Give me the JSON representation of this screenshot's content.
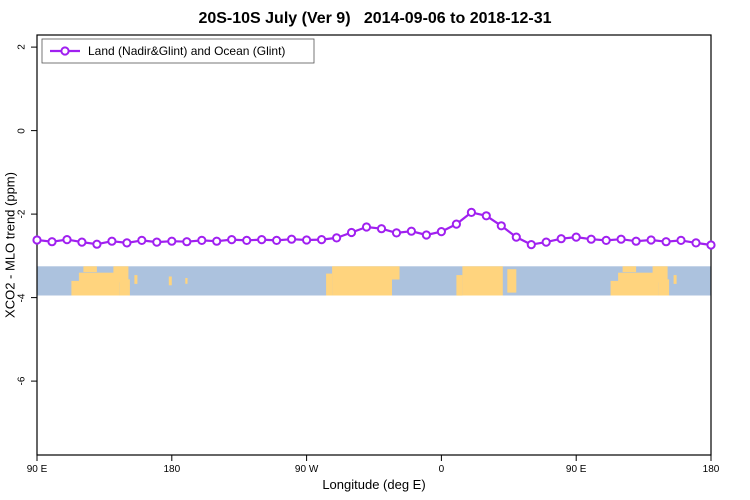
{
  "chart_data": {
    "type": "line",
    "title": "20S-10S July (Ver 9)   2014-09-06 to 2018-12-31",
    "xlabel": "Longitude (deg E)",
    "ylabel": "XCO2 - MLO trend (ppm)",
    "legend": {
      "label": "Land (Nadir&Glint) and Ocean (Glint)",
      "position": "top-left",
      "boxed": true
    },
    "colors": {
      "line": "#A020F0",
      "marker_fill": "#FFFFFF",
      "ocean": "#ACC2DE",
      "land": "#FFD47E",
      "axis": "#000000"
    },
    "grid": false,
    "ylim": [
      -7.77,
      2.29
    ],
    "x_wrap_note": "x axis spans 450 deg eastward from 90E, wrapping through 180, 90W, 0, 90E to 180",
    "x_ticks": [
      {
        "lon": 90,
        "label": "90 E"
      },
      {
        "lon": 180,
        "label": "180"
      },
      {
        "lon": 270,
        "label": "90 W"
      },
      {
        "lon": 360,
        "label": "0"
      },
      {
        "lon": 450,
        "label": "90 E"
      },
      {
        "lon": 540,
        "label": "180"
      }
    ],
    "y_ticks": [
      {
        "value": 2,
        "label": "2"
      },
      {
        "value": 0,
        "label": "0"
      },
      {
        "value": -2,
        "label": "-2"
      },
      {
        "value": -4,
        "label": "-4"
      },
      {
        "value": -6,
        "label": "-6"
      }
    ],
    "series": [
      {
        "name": "Land (Nadir&Glint) and Ocean (Glint)",
        "x": [
          90,
          100,
          110,
          120,
          130,
          140,
          150,
          160,
          170,
          180,
          190,
          200,
          210,
          220,
          230,
          240,
          250,
          260,
          270,
          280,
          290,
          300,
          310,
          320,
          330,
          340,
          350,
          360,
          370,
          380,
          390,
          400,
          410,
          420,
          430,
          440,
          450,
          460,
          470,
          480,
          490,
          500,
          510,
          520,
          530,
          540
        ],
        "y": [
          -2.62,
          -2.66,
          -2.61,
          -2.67,
          -2.72,
          -2.65,
          -2.69,
          -2.63,
          -2.67,
          -2.65,
          -2.66,
          -2.63,
          -2.65,
          -2.61,
          -2.63,
          -2.61,
          -2.63,
          -2.6,
          -2.62,
          -2.61,
          -2.57,
          -2.44,
          -2.31,
          -2.35,
          -2.45,
          -2.41,
          -2.5,
          -2.42,
          -2.24,
          -1.96,
          -2.04,
          -2.28,
          -2.55,
          -2.73,
          -2.67,
          -2.59,
          -2.55,
          -2.6,
          -2.63,
          -2.6,
          -2.65,
          -2.62,
          -2.66,
          -2.63,
          -2.69,
          -2.74
        ]
      }
    ],
    "map_band": {
      "description": "20S-10S land/ocean strip",
      "y_top": -3.25,
      "y_bottom": -3.95,
      "ocean_color": "#ACC2DE",
      "land_color": "#FFD47E",
      "land_patches": [
        {
          "lon0": 113,
          "lon1": 119,
          "top": 0.5,
          "bot": 1
        },
        {
          "lon0": 118,
          "lon1": 145,
          "top": 0.22,
          "bot": 1
        },
        {
          "lon0": 121,
          "lon1": 130,
          "top": 0,
          "bot": 0.2
        },
        {
          "lon0": 141,
          "lon1": 151,
          "top": 0,
          "bot": 0.55
        },
        {
          "lon0": 145,
          "lon1": 152,
          "top": 0.45,
          "bot": 1
        },
        {
          "lon0": 155,
          "lon1": 157,
          "top": 0.3,
          "bot": 0.6
        },
        {
          "lon0": 178,
          "lon1": 180,
          "top": 0.35,
          "bot": 0.65
        },
        {
          "lon0": 189,
          "lon1": 190.5,
          "top": 0.4,
          "bot": 0.6
        },
        {
          "lon0": 283,
          "lon1": 287,
          "top": 0.25,
          "bot": 1
        },
        {
          "lon0": 287,
          "lon1": 327,
          "top": 0,
          "bot": 1
        },
        {
          "lon0": 327,
          "lon1": 332,
          "top": 0,
          "bot": 0.45
        },
        {
          "lon0": 370,
          "lon1": 374,
          "top": 0.3,
          "bot": 1
        },
        {
          "lon0": 374,
          "lon1": 401,
          "top": 0,
          "bot": 1
        },
        {
          "lon0": 404,
          "lon1": 410,
          "top": 0.1,
          "bot": 0.9
        },
        {
          "lon0": 473,
          "lon1": 479,
          "top": 0.5,
          "bot": 1
        },
        {
          "lon0": 478,
          "lon1": 505,
          "top": 0.22,
          "bot": 1
        },
        {
          "lon0": 481,
          "lon1": 490,
          "top": 0,
          "bot": 0.2
        },
        {
          "lon0": 501,
          "lon1": 511,
          "top": 0,
          "bot": 0.55
        },
        {
          "lon0": 505,
          "lon1": 512,
          "top": 0.45,
          "bot": 1
        },
        {
          "lon0": 515,
          "lon1": 517,
          "top": 0.3,
          "bot": 0.6
        }
      ]
    }
  }
}
